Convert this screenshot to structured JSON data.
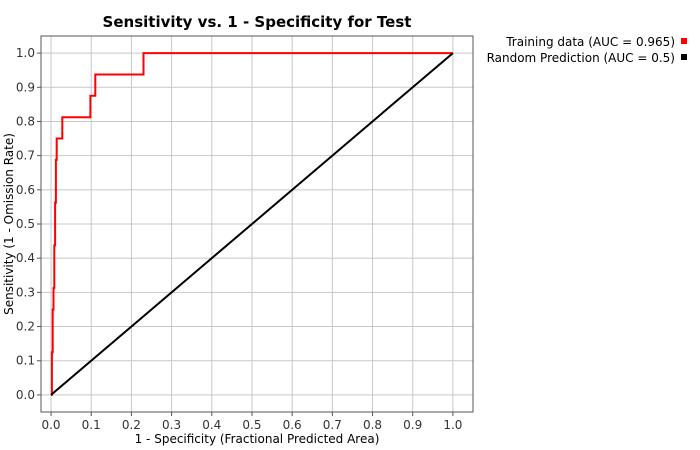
{
  "chart_data": {
    "type": "line",
    "title": "Sensitivity vs. 1 - Specificity for Test",
    "xlabel": "1 - Specificity  (Fractional Predicted Area)",
    "ylabel": "Sensitivity  (1 - Omission Rate)",
    "xlim": [
      -0.025,
      1.05
    ],
    "ylim": [
      -0.05,
      1.05
    ],
    "xticks": [
      0.0,
      0.1,
      0.2,
      0.3,
      0.4,
      0.5,
      0.6,
      0.7,
      0.8,
      0.9,
      1.0
    ],
    "yticks": [
      0.0,
      0.1,
      0.2,
      0.3,
      0.4,
      0.5,
      0.6,
      0.7,
      0.8,
      0.9,
      1.0
    ],
    "xtick_labels": [
      "0.0",
      "0.1",
      "0.2",
      "0.3",
      "0.4",
      "0.5",
      "0.6",
      "0.7",
      "0.8",
      "0.9",
      "1.0"
    ],
    "ytick_labels": [
      "0.0",
      "0.1",
      "0.2",
      "0.3",
      "0.4",
      "0.5",
      "0.6",
      "0.7",
      "0.8",
      "0.9",
      "1.0"
    ],
    "grid": true,
    "legend_position": "right",
    "series": [
      {
        "name": "Training data (AUC = 0.965)",
        "color": "#ff0000",
        "x": [
          0.0,
          0.002,
          0.002,
          0.004,
          0.004,
          0.006,
          0.006,
          0.008,
          0.008,
          0.01,
          0.01,
          0.012,
          0.012,
          0.014,
          0.014,
          0.016,
          0.016,
          0.018,
          0.018,
          0.028,
          0.028,
          0.098,
          0.098,
          0.11,
          0.11,
          0.23,
          0.23,
          1.0
        ],
        "y": [
          0.0,
          0.0,
          0.125,
          0.125,
          0.25,
          0.25,
          0.3125,
          0.3125,
          0.4375,
          0.4375,
          0.5625,
          0.5625,
          0.6875,
          0.6875,
          0.75,
          0.75,
          0.75,
          0.75,
          0.75,
          0.75,
          0.8125,
          0.8125,
          0.875,
          0.875,
          0.9375,
          0.9375,
          1.0,
          1.0
        ]
      },
      {
        "name": "Random Prediction (AUC = 0.5)",
        "color": "#000000",
        "x": [
          0.0,
          1.0
        ],
        "y": [
          0.0,
          1.0
        ]
      }
    ]
  }
}
